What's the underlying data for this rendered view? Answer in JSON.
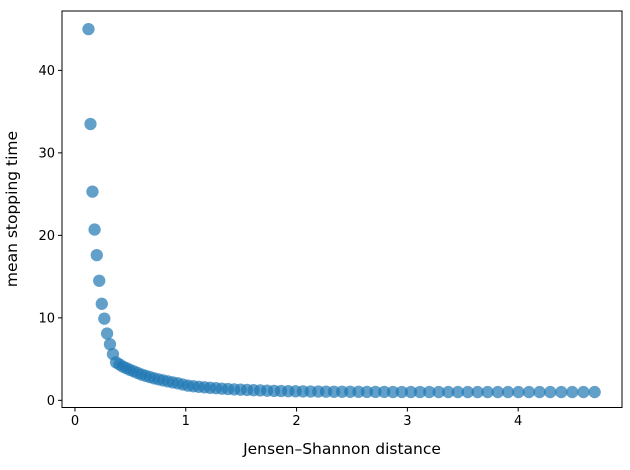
{
  "chart_data": {
    "type": "scatter",
    "title": "",
    "xlabel": "Jensen–Shannon distance",
    "ylabel": "mean stopping time",
    "xlim": [
      -0.117,
      4.937
    ],
    "ylim": [
      -0.87,
      47.2
    ],
    "xticks": [
      0,
      1,
      2,
      3,
      4
    ],
    "yticks": [
      0,
      10,
      20,
      30,
      40
    ],
    "grid": false,
    "legend": null,
    "marker": {
      "color": "#1f77b4",
      "alpha": 0.7,
      "radius_px": 6.15
    },
    "spine_color": "#000000",
    "background_color": "#ffffff",
    "points": [
      [
        0.122,
        45.0
      ],
      [
        0.14,
        33.5
      ],
      [
        0.158,
        25.3
      ],
      [
        0.177,
        20.7
      ],
      [
        0.197,
        17.6
      ],
      [
        0.219,
        14.5
      ],
      [
        0.242,
        11.7
      ],
      [
        0.265,
        9.9
      ],
      [
        0.29,
        8.1
      ],
      [
        0.316,
        6.8
      ],
      [
        0.343,
        5.6
      ],
      [
        0.371,
        4.6
      ],
      [
        0.401,
        4.35
      ],
      [
        0.431,
        4.1
      ],
      [
        0.463,
        3.9
      ],
      [
        0.495,
        3.7
      ],
      [
        0.529,
        3.52
      ],
      [
        0.564,
        3.32
      ],
      [
        0.6,
        3.13
      ],
      [
        0.637,
        2.97
      ],
      [
        0.675,
        2.82
      ],
      [
        0.714,
        2.67
      ],
      [
        0.755,
        2.54
      ],
      [
        0.796,
        2.42
      ],
      [
        0.839,
        2.3
      ],
      [
        0.883,
        2.18
      ],
      [
        0.928,
        2.06
      ],
      [
        0.974,
        1.92
      ],
      [
        1.021,
        1.78
      ],
      [
        1.069,
        1.71
      ],
      [
        1.118,
        1.64
      ],
      [
        1.169,
        1.58
      ],
      [
        1.22,
        1.52
      ],
      [
        1.273,
        1.47
      ],
      [
        1.326,
        1.42
      ],
      [
        1.381,
        1.37
      ],
      [
        1.437,
        1.33
      ],
      [
        1.495,
        1.29
      ],
      [
        1.553,
        1.26
      ],
      [
        1.612,
        1.23
      ],
      [
        1.672,
        1.2
      ],
      [
        1.734,
        1.17
      ],
      [
        1.797,
        1.15
      ],
      [
        1.86,
        1.13
      ],
      [
        1.925,
        1.11
      ],
      [
        1.991,
        1.09
      ],
      [
        2.058,
        1.08
      ],
      [
        2.127,
        1.07
      ],
      [
        2.196,
        1.06
      ],
      [
        2.266,
        1.05
      ],
      [
        2.338,
        1.04
      ],
      [
        2.411,
        1.04
      ],
      [
        2.484,
        1.03
      ],
      [
        2.559,
        1.03
      ],
      [
        2.635,
        1.02
      ],
      [
        2.712,
        1.02
      ],
      [
        2.791,
        1.02
      ],
      [
        2.87,
        1.01
      ],
      [
        2.95,
        1.01
      ],
      [
        3.032,
        1.01
      ],
      [
        3.114,
        1.01
      ],
      [
        3.198,
        1.01
      ],
      [
        3.283,
        1.0
      ],
      [
        3.369,
        1.0
      ],
      [
        3.456,
        1.0
      ],
      [
        3.545,
        1.0
      ],
      [
        3.634,
        1.0
      ],
      [
        3.724,
        1.0
      ],
      [
        3.816,
        1.0
      ],
      [
        3.908,
        1.0
      ],
      [
        4.002,
        1.0
      ],
      [
        4.097,
        1.0
      ],
      [
        4.193,
        1.0
      ],
      [
        4.29,
        1.0
      ],
      [
        4.389,
        1.0
      ],
      [
        4.488,
        1.0
      ],
      [
        4.589,
        1.0
      ],
      [
        4.69,
        1.0
      ]
    ]
  }
}
